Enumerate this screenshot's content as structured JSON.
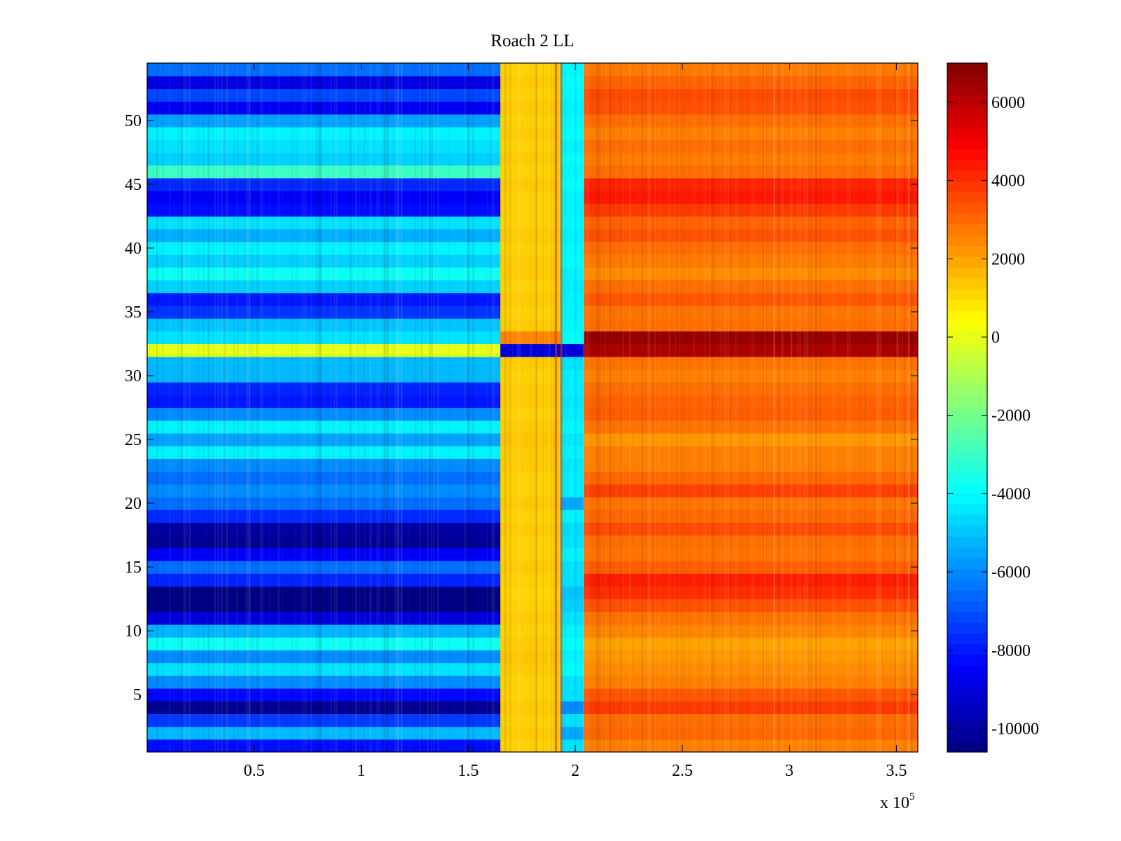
{
  "chart_data": {
    "type": "heatmap",
    "title": "Roach 2 LL",
    "xlabel": "",
    "ylabel": "",
    "x_exponent_label": "x 10",
    "x_exponent_sup": "5",
    "xlim": [
      0,
      3.6
    ],
    "ylim": [
      0.5,
      54.5
    ],
    "x_ticks": [
      {
        "value": 0.5,
        "label": "0.5"
      },
      {
        "value": 1,
        "label": "1"
      },
      {
        "value": 1.5,
        "label": "1.5"
      },
      {
        "value": 2,
        "label": "2"
      },
      {
        "value": 2.5,
        "label": "2.5"
      },
      {
        "value": 3,
        "label": "3"
      },
      {
        "value": 3.5,
        "label": "3.5"
      }
    ],
    "y_ticks": [
      {
        "value": 5,
        "label": "5"
      },
      {
        "value": 10,
        "label": "10"
      },
      {
        "value": 15,
        "label": "15"
      },
      {
        "value": 20,
        "label": "20"
      },
      {
        "value": 25,
        "label": "25"
      },
      {
        "value": 30,
        "label": "30"
      },
      {
        "value": 35,
        "label": "35"
      },
      {
        "value": 40,
        "label": "40"
      },
      {
        "value": 45,
        "label": "45"
      },
      {
        "value": 50,
        "label": "50"
      }
    ],
    "colorbar": {
      "colormap": "jet",
      "clim": [
        -10600,
        7000
      ],
      "ticks": [
        {
          "value": 6000,
          "label": "6000"
        },
        {
          "value": 4000,
          "label": "4000"
        },
        {
          "value": 2000,
          "label": "2000"
        },
        {
          "value": 0,
          "label": "0"
        },
        {
          "value": -2000,
          "label": "-2000"
        },
        {
          "value": -4000,
          "label": "-4000"
        },
        {
          "value": -6000,
          "label": "-6000"
        },
        {
          "value": -8000,
          "label": "-8000"
        },
        {
          "value": -10000,
          "label": "-10000"
        }
      ]
    },
    "rows": 54,
    "x_segments": [
      {
        "name": "low-region",
        "x_start": 0,
        "x_end": 1.65
      },
      {
        "name": "yellow-band",
        "x_start": 1.65,
        "x_end": 1.93
      },
      {
        "name": "cyan-band",
        "x_start": 1.93,
        "x_end": 2.04
      },
      {
        "name": "high-region",
        "x_start": 2.04,
        "x_end": 3.6
      }
    ],
    "row_values_low_region": [
      -8200,
      -5200,
      -7400,
      -10300,
      -8300,
      -6000,
      -4500,
      -6000,
      -3800,
      -5300,
      -9000,
      -10500,
      -10500,
      -7800,
      -6500,
      -8500,
      -10200,
      -10000,
      -7700,
      -6500,
      -6000,
      -6500,
      -6000,
      -4200,
      -5600,
      -4200,
      -6000,
      -8000,
      -7800,
      -5200,
      -5200,
      0,
      -4500,
      -5000,
      -7500,
      -8000,
      -4800,
      -3800,
      -4800,
      -4200,
      -5400,
      -4500,
      -8200,
      -8500,
      -7700,
      -3000,
      -4800,
      -4500,
      -4200,
      -5600,
      -8600,
      -7200,
      -8900,
      -6500
    ],
    "row_values_yellow_band": [
      1200,
      1300,
      1200,
      1300,
      1200,
      1200,
      1300,
      1400,
      1300,
      1200,
      1300,
      1200,
      1100,
      1200,
      1300,
      1200,
      1200,
      1300,
      1200,
      1300,
      1200,
      1200,
      1300,
      1300,
      1400,
      1300,
      1200,
      1300,
      1300,
      1200,
      1300,
      -9000,
      2500,
      1300,
      1200,
      1300,
      1200,
      1300,
      1300,
      1200,
      1300,
      1200,
      1200,
      1200,
      1300,
      1200,
      1300,
      1200,
      1300,
      1200,
      1300,
      1200,
      1300,
      1200
    ],
    "row_values_cyan_band": [
      -4500,
      -5500,
      -4500,
      -6000,
      -4500,
      -4500,
      -4000,
      -4200,
      -4000,
      -4200,
      -4500,
      -4800,
      -5000,
      -4500,
      -4500,
      -4200,
      -4500,
      -4600,
      -4200,
      -5500,
      -4300,
      -4300,
      -4400,
      -4200,
      -4400,
      -4100,
      -4300,
      -4400,
      -4300,
      -4300,
      -4500,
      -9000,
      -4000,
      -4100,
      -4200,
      -4200,
      -4300,
      -4200,
      -4000,
      -4100,
      -4200,
      -4100,
      -4200,
      -4200,
      -4000,
      -4100,
      -4000,
      -4200,
      -4000,
      -4100,
      -4200,
      -4100,
      -4000,
      -4100
    ],
    "row_values_high_region": [
      2600,
      3000,
      2900,
      3800,
      3300,
      2600,
      2400,
      2200,
      2000,
      2500,
      2800,
      3400,
      4000,
      4300,
      3200,
      2800,
      2900,
      3500,
      3000,
      2800,
      3700,
      3000,
      2600,
      2600,
      2200,
      2800,
      3200,
      3100,
      2900,
      2600,
      2800,
      6200,
      6600,
      2900,
      2800,
      3300,
      2900,
      2400,
      2700,
      2900,
      3400,
      3100,
      3800,
      4400,
      4200,
      2900,
      2700,
      2900,
      2600,
      2900,
      3400,
      3500,
      3100,
      2700
    ]
  }
}
